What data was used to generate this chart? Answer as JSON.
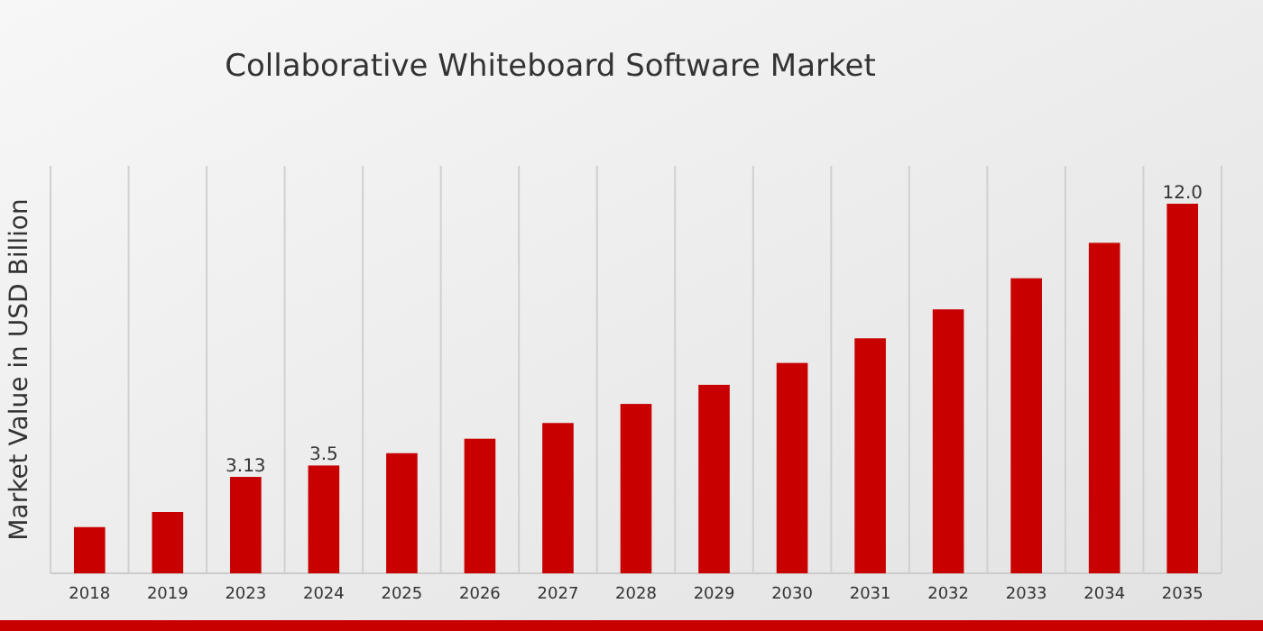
{
  "chart_data": {
    "type": "bar",
    "title": "Collaborative Whiteboard Software Market",
    "ylabel": "Market Value in USD Billion",
    "categories": [
      "2018",
      "2019",
      "2023",
      "2024",
      "2025",
      "2026",
      "2027",
      "2028",
      "2029",
      "2030",
      "2031",
      "2032",
      "2033",
      "2034",
      "2035"
    ],
    "values": [
      1.5,
      1.99,
      3.13,
      3.5,
      3.9,
      4.37,
      4.88,
      5.5,
      6.12,
      6.83,
      7.63,
      8.57,
      9.58,
      10.73,
      12.0
    ],
    "value_labels": [
      null,
      null,
      "3.13",
      "3.5",
      null,
      null,
      null,
      null,
      null,
      null,
      null,
      null,
      null,
      null,
      "12.0"
    ],
    "color": "#c80000",
    "grid": "x"
  }
}
